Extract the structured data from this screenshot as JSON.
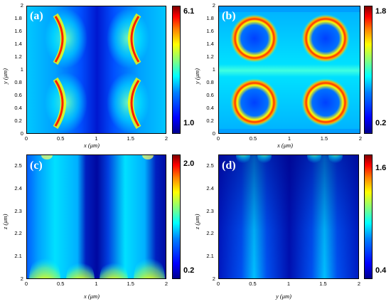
{
  "chart_data": [
    {
      "type": "heatmap",
      "panel_label": "(a)",
      "xlabel": "x (μm)",
      "ylabel": "y (μm)",
      "xticks": [
        "0",
        "0.5",
        "1",
        "1.5",
        "2"
      ],
      "yticks": [
        "0",
        "0.2",
        "0.4",
        "0.6",
        "0.8",
        "1",
        "1.2",
        "1.4",
        "1.6",
        "1.8",
        "2"
      ],
      "xlim": [
        0,
        2
      ],
      "ylim": [
        0,
        2
      ],
      "colorbar": {
        "max_label": "6.1",
        "min_label": "1.0",
        "max": 6.1,
        "min": 1.0,
        "colormap": "jet"
      },
      "pattern": "two crescent-shaped hot spots per half-period along x=0.5 and x=1.5, centred near y=0.5 and y=1.5"
    },
    {
      "type": "heatmap",
      "panel_label": "(b)",
      "xlabel": "x (μm)",
      "ylabel": "y (μm)",
      "xticks": [
        "0",
        "0.5",
        "1",
        "1.5",
        "2"
      ],
      "yticks": [
        "0",
        "0.2",
        "0.4",
        "0.6",
        "0.8",
        "1",
        "1.2",
        "1.4",
        "1.6",
        "1.8",
        "2"
      ],
      "xlim": [
        0,
        2
      ],
      "ylim": [
        0,
        2
      ],
      "colorbar": {
        "max_label": "1.8",
        "min_label": "0.2",
        "max": 1.8,
        "min": 0.2,
        "colormap": "jet"
      },
      "pattern": "four ring-shaped hot spots centred at (0.5,0.5), (1.5,0.5), (0.5,1.5), (1.5,1.5)"
    },
    {
      "type": "heatmap",
      "panel_label": "(c)",
      "xlabel": "x (μm)",
      "ylabel": "z (μm)",
      "xticks": [
        "0",
        "0.5",
        "1",
        "1.5",
        "2"
      ],
      "yticks": [
        "2",
        "2.1",
        "2.2",
        "2.3",
        "2.4",
        "2.5"
      ],
      "xlim": [
        0,
        2
      ],
      "ylim": [
        2,
        2.55
      ],
      "colorbar": {
        "max_label": "2.0",
        "min_label": "0.2",
        "max": 2.0,
        "min": 0.2,
        "colormap": "jet"
      },
      "pattern": "vertical cyan bands with red hot spots at the bottom near x=0.2, 0.8, 1.2, 1.8; dark blue channels near x=0.95 and x=1.95"
    },
    {
      "type": "heatmap",
      "panel_label": "(d)",
      "xlabel": "y (μm)",
      "ylabel": "z (μm)",
      "xticks": [
        "0",
        "0.5",
        "1",
        "1.5",
        "2"
      ],
      "yticks": [
        "2",
        "2.1",
        "2.2",
        "2.3",
        "2.4",
        "2.5"
      ],
      "xlim": [
        0,
        2
      ],
      "ylim": [
        2,
        2.55
      ],
      "colorbar": {
        "max_label": "1.6",
        "min_label": "0.4",
        "max": 1.6,
        "min": 0.4,
        "colormap": "jet"
      },
      "pattern": "mostly dark blue with light-cyan bands near y=0.5 and y=1.5 and hot spots at the top edge near y=0.35, 0.65, 1.35, 1.65"
    }
  ]
}
